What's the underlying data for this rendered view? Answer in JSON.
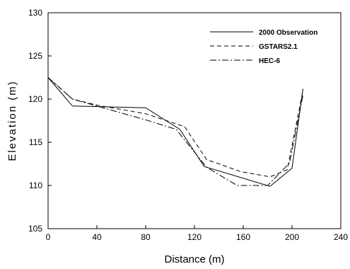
{
  "chart_data": {
    "type": "line",
    "xlabel": "Distance (m)",
    "ylabel": "Elevation (m)",
    "xlim": [
      0,
      240
    ],
    "ylim": [
      105,
      130
    ],
    "xticks": [
      0,
      40,
      80,
      120,
      160,
      200,
      240
    ],
    "yticks": [
      105,
      110,
      115,
      120,
      125,
      130
    ],
    "grid": false,
    "legend_position": "top-right",
    "series": [
      {
        "name": "2000 Observation",
        "style": "solid",
        "color": "#000000",
        "x": [
          0,
          20,
          80,
          108,
          128,
          182,
          200,
          209
        ],
        "y": [
          122.5,
          119.2,
          119.0,
          116.5,
          112.2,
          109.9,
          112.0,
          121.2
        ]
      },
      {
        "name": "GSTARS2.1",
        "style": "dashed",
        "color": "#000000",
        "x": [
          0,
          20,
          40,
          80,
          112,
          130,
          158,
          182,
          196,
          209
        ],
        "y": [
          122.5,
          120.0,
          119.3,
          118.3,
          116.8,
          113.0,
          111.6,
          111.0,
          111.8,
          121.0
        ]
      },
      {
        "name": "HEC-6",
        "style": "dashdot",
        "color": "#000000",
        "x": [
          0,
          20,
          40,
          80,
          105,
          130,
          155,
          180,
          198,
          209
        ],
        "y": [
          122.5,
          120.0,
          119.2,
          117.6,
          116.5,
          112.1,
          110.0,
          110.0,
          112.6,
          120.5
        ]
      }
    ]
  }
}
